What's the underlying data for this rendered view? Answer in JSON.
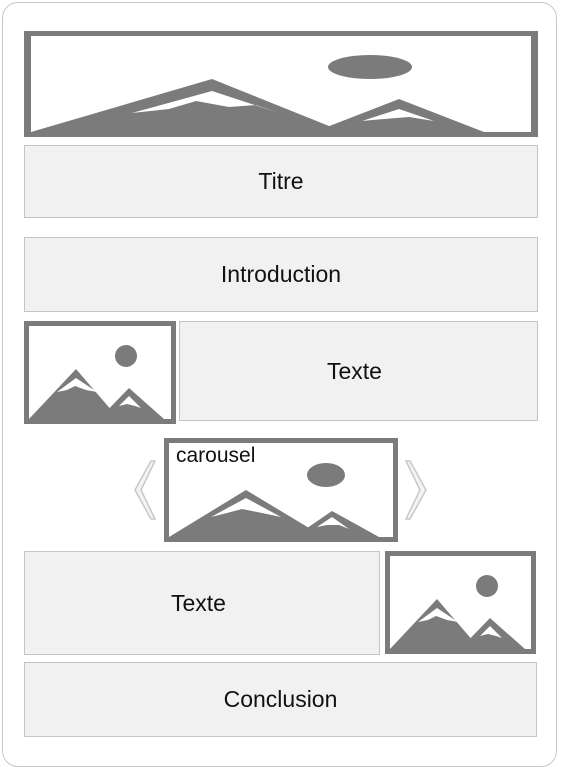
{
  "sections": {
    "title": "Titre",
    "introduction": "Introduction",
    "text_top": "Texte",
    "carousel_label": "carousel",
    "text_bottom": "Texte",
    "conclusion": "Conclusion"
  },
  "icons": {
    "placeholder": "landscape-image-icon",
    "prev": "chevron-left-icon",
    "next": "chevron-right-icon"
  },
  "colors": {
    "frame_border": "#c8c8c8",
    "box_fill": "#f1f1f1",
    "box_border": "#c4c4c4",
    "image_gray": "#7b7b7b"
  }
}
